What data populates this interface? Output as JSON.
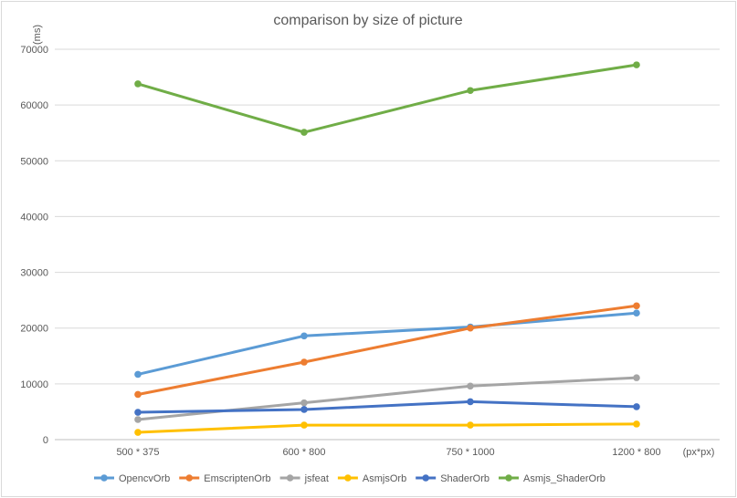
{
  "chart_data": {
    "type": "line",
    "title": "comparison by size of picture",
    "ylabel": "(ms)",
    "xlabel": "(px*px)",
    "categories": [
      "500 * 375",
      "600 * 800",
      "750 * 1000",
      "1200 * 800"
    ],
    "ylim": [
      0,
      70000
    ],
    "yticks": [
      0,
      10000,
      20000,
      30000,
      40000,
      50000,
      60000,
      70000
    ],
    "grid": true,
    "legend_position": "bottom",
    "series": [
      {
        "name": "OpencvOrb",
        "color": "#5b9bd5",
        "values": [
          11700,
          18600,
          20200,
          22700
        ]
      },
      {
        "name": "EmscriptenOrb",
        "color": "#ed7d31",
        "values": [
          8100,
          13900,
          20000,
          24000
        ]
      },
      {
        "name": "jsfeat",
        "color": "#a5a5a5",
        "values": [
          3600,
          6600,
          9600,
          11100
        ]
      },
      {
        "name": "AsmjsOrb",
        "color": "#ffc000",
        "values": [
          1300,
          2600,
          2600,
          2800
        ]
      },
      {
        "name": "ShaderOrb",
        "color": "#4472c4",
        "values": [
          4900,
          5400,
          6800,
          5900
        ]
      },
      {
        "name": "Asmjs_ShaderOrb",
        "color": "#70ad47",
        "values": [
          63800,
          55100,
          62600,
          67200
        ]
      }
    ]
  }
}
